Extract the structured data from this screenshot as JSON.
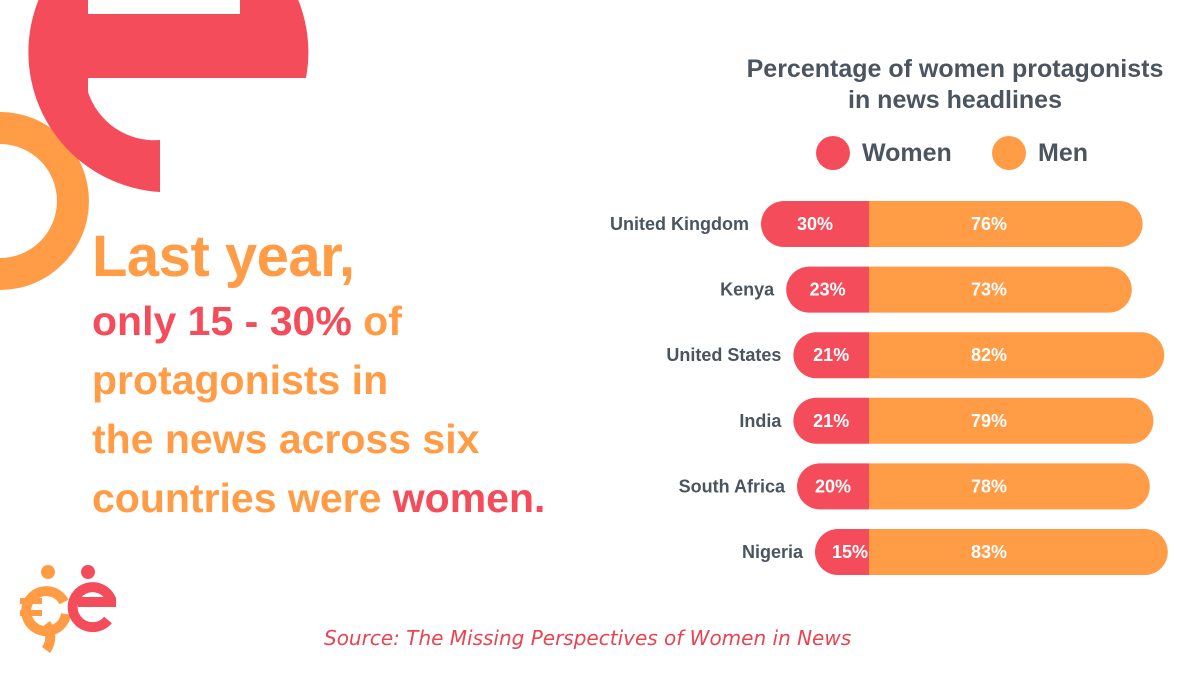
{
  "headline": {
    "line1": "Last year,",
    "line2_a": "only 15 - 30%",
    "line2_b": " of",
    "line3": "protagonists in",
    "line4": "the news across six",
    "line5_a": "countries were ",
    "line5_b": "women."
  },
  "source": "Source: The Missing Perspectives of Women in News",
  "colors": {
    "women": "#f44c5a",
    "men": "#ff9c45",
    "text": "#4b5560"
  },
  "icons": {
    "background": "brand-e-shape",
    "logo": "ge-brand-logo"
  },
  "chart_data": {
    "type": "bar",
    "orientation": "horizontal",
    "stacked": true,
    "title": "Percentage of women protagonists in news headlines",
    "legend": {
      "position": "top",
      "items": [
        "Women",
        "Men"
      ]
    },
    "categories": [
      "United Kingdom",
      "Kenya",
      "United States",
      "India",
      "South Africa",
      "Nigeria"
    ],
    "series": [
      {
        "name": "Women",
        "values": [
          30,
          23,
          21,
          21,
          20,
          15
        ],
        "labels": [
          "30%",
          "23%",
          "21%",
          "21%",
          "20%",
          "15%"
        ]
      },
      {
        "name": "Men",
        "values": [
          76,
          73,
          82,
          79,
          78,
          83
        ],
        "labels": [
          "76%",
          "73%",
          "82%",
          "79%",
          "78%",
          "83%"
        ]
      }
    ]
  }
}
